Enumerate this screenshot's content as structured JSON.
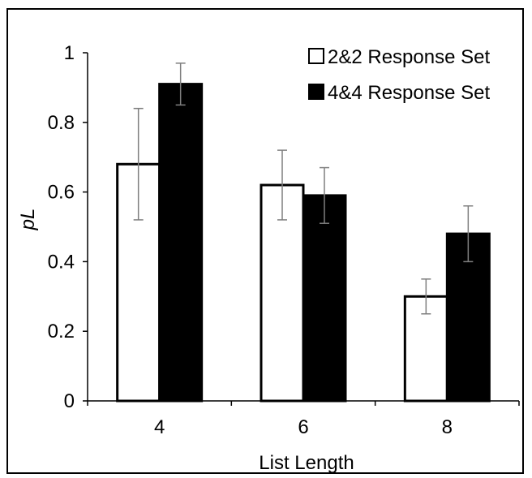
{
  "chart_data": {
    "type": "bar",
    "categories": [
      "4",
      "6",
      "8"
    ],
    "series": [
      {
        "name": "2&2 Response Set",
        "color": "#ffffff",
        "stroke": "#000000",
        "values": [
          0.68,
          0.62,
          0.3
        ],
        "errors": [
          0.16,
          0.1,
          0.05
        ]
      },
      {
        "name": "4&4 Response Set",
        "color": "#000000",
        "stroke": "#000000",
        "values": [
          0.91,
          0.59,
          0.48
        ],
        "errors": [
          0.06,
          0.08,
          0.08
        ]
      }
    ],
    "xlabel": "List Length",
    "ylabel": "pL",
    "ylim": [
      0,
      1
    ],
    "yticks": [
      "0",
      "0.2",
      "0.4",
      "0.6",
      "0.8",
      "1"
    ],
    "legend": "top-right",
    "grid": false
  }
}
